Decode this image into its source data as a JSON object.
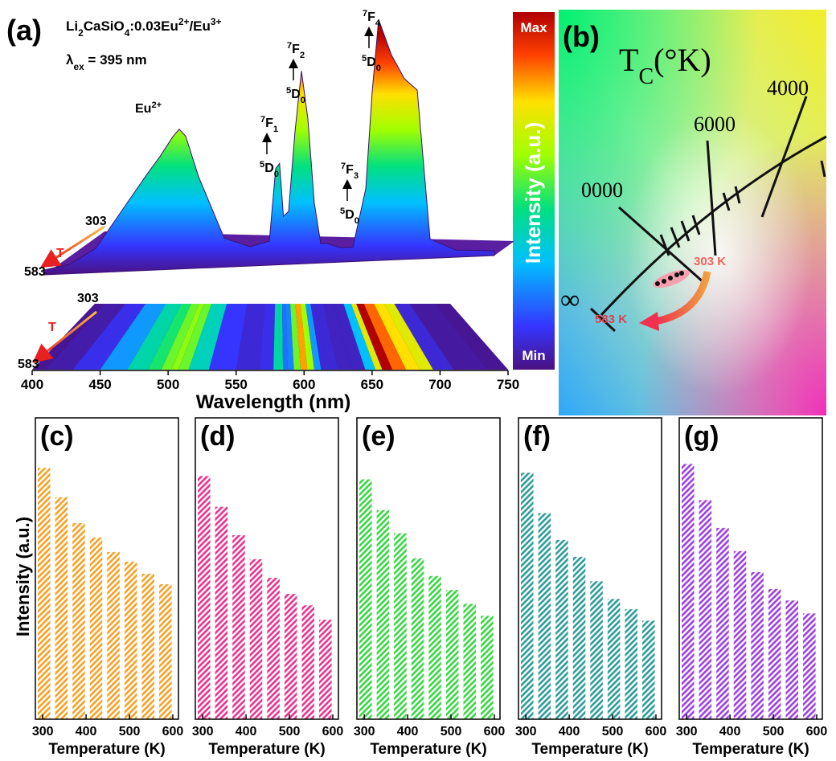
{
  "chart_data": [
    {
      "type": "waterfall",
      "label": "(a)",
      "title_parts": [
        {
          "t": "Li"
        },
        {
          "sub": "2"
        },
        {
          "t": "CaSiO"
        },
        {
          "sub": "4"
        },
        {
          "t": ":0.03Eu"
        },
        {
          "sup": "2+"
        },
        {
          "t": "/Eu"
        },
        {
          "sup": "3+"
        }
      ],
      "excitation_parts": [
        {
          "t": "λ"
        },
        {
          "sub": "ex"
        },
        {
          "t": " = 395 nm"
        }
      ],
      "peak_label": [
        {
          "t": "Eu"
        },
        {
          "sup": "2+"
        }
      ],
      "transitions": [
        {
          "upper": [
            {
              "sup": "7"
            },
            {
              "t": "F"
            },
            {
              "sub": "1"
            }
          ],
          "lower": [
            {
              "sup": "5"
            },
            {
              "t": "D"
            },
            {
              "sub": "0"
            }
          ]
        },
        {
          "upper": [
            {
              "sup": "7"
            },
            {
              "t": "F"
            },
            {
              "sub": "2"
            }
          ],
          "lower": [
            {
              "sup": "5"
            },
            {
              "t": "D"
            },
            {
              "sub": "0"
            }
          ]
        },
        {
          "upper": [
            {
              "sup": "7"
            },
            {
              "t": "F"
            },
            {
              "sub": "3"
            }
          ],
          "lower": [
            {
              "sup": "5"
            },
            {
              "t": "D"
            },
            {
              "sub": "0"
            }
          ]
        },
        {
          "upper": [
            {
              "sup": "7"
            },
            {
              "t": "F"
            },
            {
              "sub": "4"
            }
          ],
          "lower": [
            {
              "sup": "5"
            },
            {
              "t": "D"
            },
            {
              "sub": "0"
            }
          ]
        }
      ],
      "temperature_back": "303",
      "temperature_front": "583",
      "temperature_symbol": "T",
      "colorbar_max": "Max",
      "colorbar_min": "Min",
      "colorbar_label": "Intensity (a.u.)",
      "xlabel": "Wavelength (nm)",
      "xlim": [
        400,
        750
      ],
      "xticks": [
        400,
        450,
        500,
        550,
        600,
        650,
        700,
        750
      ],
      "ylim": [
        0,
        100
      ],
      "x": [
        400,
        420,
        440,
        460,
        480,
        490,
        500,
        505,
        510,
        520,
        540,
        560,
        575,
        580,
        583,
        586,
        590,
        595,
        600,
        605,
        610,
        615,
        620,
        630,
        640,
        650,
        655,
        660,
        670,
        680,
        690,
        700,
        720,
        750
      ],
      "values": [
        2,
        4,
        10,
        25,
        40,
        47,
        55,
        58,
        55,
        38,
        12,
        8,
        10,
        40,
        42,
        20,
        22,
        55,
        80,
        60,
        25,
        8,
        8,
        6,
        6,
        30,
        70,
        100,
        85,
        75,
        70,
        8,
        3,
        2
      ]
    },
    {
      "type": "bar",
      "title": "(c)",
      "ylabel": "Intensity (a.u.)",
      "xlabel": "Temperature (K)",
      "color": "#f5a024",
      "x": [
        303,
        343,
        383,
        423,
        463,
        503,
        543,
        583
      ],
      "values": [
        83.4,
        73.7,
        65.1,
        60.3,
        55.5,
        52.3,
        48.3,
        44.8
      ],
      "xlim": [
        283,
        613
      ],
      "xticks": [
        300,
        400,
        500,
        600
      ],
      "ylim": [
        0,
        100
      ]
    },
    {
      "type": "bar",
      "title": "(d)",
      "xlabel": "Temperature (K)",
      "color": "#e8308c",
      "x": [
        303,
        343,
        383,
        423,
        463,
        503,
        543,
        583
      ],
      "values": [
        80.7,
        70.5,
        61.1,
        53.1,
        46.9,
        41.6,
        37.8,
        33.0
      ],
      "xlim": [
        283,
        613
      ],
      "xticks": [
        300,
        400,
        500,
        600
      ],
      "ylim": [
        0,
        100
      ]
    },
    {
      "type": "bar",
      "title": "(e)",
      "xlabel": "Temperature (K)",
      "color": "#35d640",
      "x": [
        303,
        343,
        383,
        423,
        463,
        503,
        543,
        583
      ],
      "values": [
        79.6,
        69.4,
        61.7,
        53.4,
        47.5,
        42.9,
        38.3,
        34.3
      ],
      "xlim": [
        283,
        613
      ],
      "xticks": [
        300,
        400,
        500,
        600
      ],
      "ylim": [
        0,
        100
      ]
    },
    {
      "type": "bar",
      "title": "(f)",
      "xlabel": "Temperature (K)",
      "color": "#2a9a98",
      "x": [
        303,
        343,
        383,
        423,
        463,
        503,
        543,
        583
      ],
      "values": [
        81.8,
        68.4,
        59.5,
        53.9,
        45.8,
        39.9,
        36.5,
        32.7
      ],
      "xlim": [
        283,
        613
      ],
      "xticks": [
        300,
        400,
        500,
        600
      ],
      "ylim": [
        0,
        100
      ]
    },
    {
      "type": "bar",
      "title": "(g)",
      "xlabel": "Temperature (K)",
      "color": "#9b3de0",
      "x": [
        303,
        343,
        383,
        423,
        463,
        503,
        543,
        583
      ],
      "values": [
        84.7,
        72.7,
        63.5,
        55.8,
        48.8,
        43.2,
        39.4,
        35.1
      ],
      "xlim": [
        283,
        613
      ],
      "xticks": [
        300,
        400,
        500,
        600
      ],
      "ylim": [
        0,
        100
      ]
    }
  ],
  "panel_b": {
    "label": "(b)",
    "heading": [
      {
        "t": "T"
      },
      {
        "sub": "C"
      },
      {
        "t": "(°K)"
      }
    ],
    "isotherm_4000": "4000",
    "isotherm_6000": "6000",
    "isotherm_10000": "0000",
    "infinity": "∞",
    "start_temperature": "303 K",
    "end_temperature": "583 K"
  }
}
